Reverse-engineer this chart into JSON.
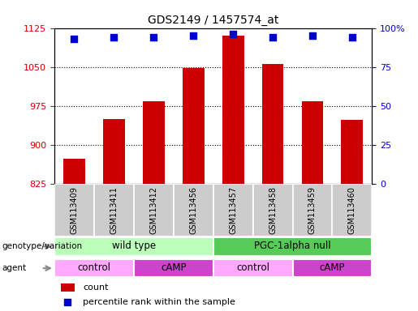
{
  "title": "GDS2149 / 1457574_at",
  "samples": [
    "GSM113409",
    "GSM113411",
    "GSM113412",
    "GSM113456",
    "GSM113457",
    "GSM113458",
    "GSM113459",
    "GSM113460"
  ],
  "counts": [
    872,
    950,
    983,
    1047,
    1110,
    1055,
    983,
    948
  ],
  "percentile_ranks": [
    93,
    94,
    94,
    95,
    96,
    94,
    95,
    94
  ],
  "ylim_left": [
    825,
    1125
  ],
  "ylim_right": [
    0,
    100
  ],
  "yticks_left": [
    825,
    900,
    975,
    1050,
    1125
  ],
  "yticks_right": [
    0,
    25,
    50,
    75,
    100
  ],
  "bar_color": "#cc0000",
  "dot_color": "#0000cc",
  "grid_color": "#000000",
  "genotype_groups": [
    {
      "label": "wild type",
      "start": 0,
      "end": 4,
      "color": "#bbffbb"
    },
    {
      "label": "PGC-1alpha null",
      "start": 4,
      "end": 8,
      "color": "#55cc55"
    }
  ],
  "agent_groups": [
    {
      "label": "control",
      "start": 0,
      "end": 2,
      "color": "#ffaaff"
    },
    {
      "label": "cAMP",
      "start": 2,
      "end": 4,
      "color": "#cc44cc"
    },
    {
      "label": "control",
      "start": 4,
      "end": 6,
      "color": "#ffaaff"
    },
    {
      "label": "cAMP",
      "start": 6,
      "end": 8,
      "color": "#cc44cc"
    }
  ],
  "legend_count_color": "#cc0000",
  "legend_dot_color": "#0000cc",
  "bg_color": "#ffffff",
  "tick_label_color_left": "#cc0000",
  "tick_label_color_right": "#0000cc",
  "sample_box_color": "#cccccc",
  "genotype_label": "genotype/variation",
  "agent_label": "agent"
}
